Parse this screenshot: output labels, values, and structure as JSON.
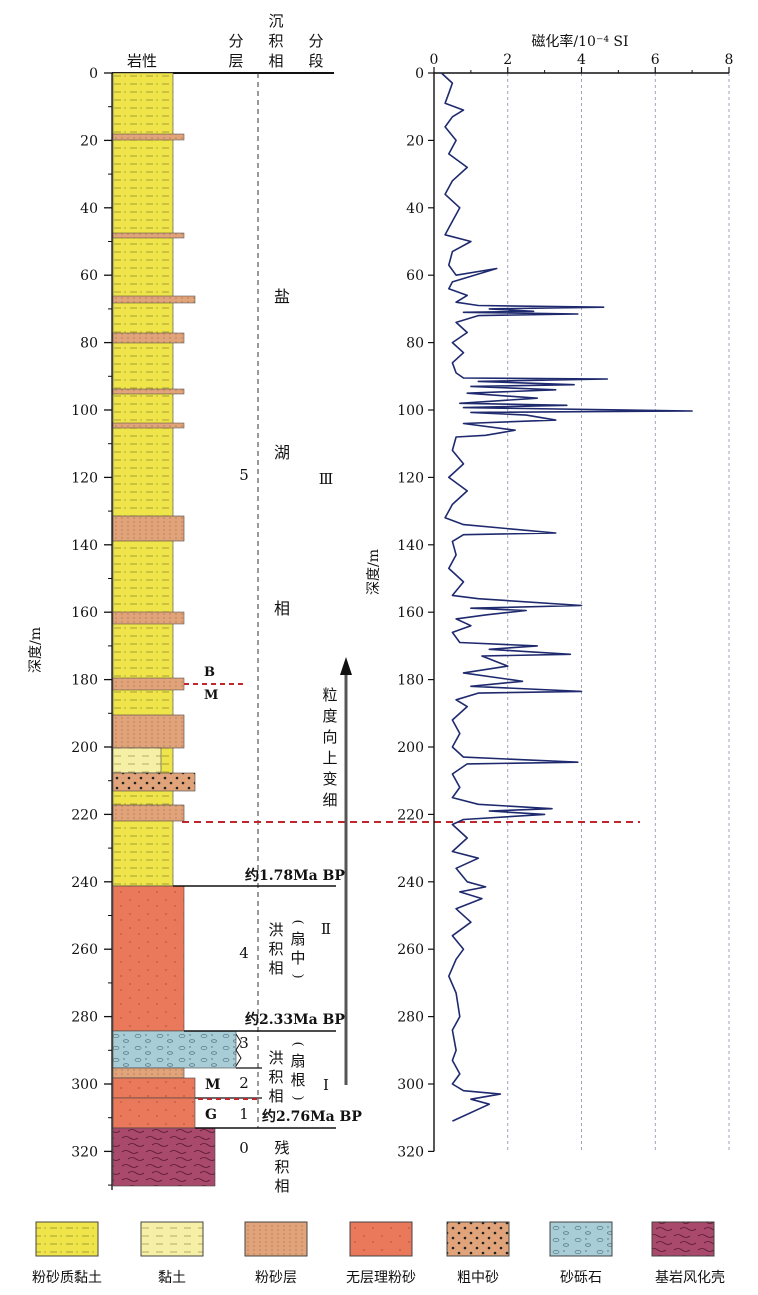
{
  "lith_header": {
    "lithology": "岩性",
    "layer": [
      "分",
      "层"
    ],
    "facies": [
      "沉",
      "积",
      "相"
    ],
    "stage": [
      "分",
      "段"
    ]
  },
  "depth_axis": {
    "label": "深度/m",
    "ticks": [
      "0",
      "20",
      "40",
      "60",
      "80",
      "100",
      "120",
      "140",
      "160",
      "180",
      "200",
      "220",
      "240",
      "260",
      "280",
      "300",
      "320"
    ]
  },
  "layers": [
    {
      "name": "5",
      "facies": [
        "盐",
        "湖",
        "相"
      ],
      "stage": "Ⅲ"
    },
    {
      "name": "4",
      "facies": [
        "洪",
        "积",
        "相"
      ],
      "note": [
        "(",
        "扇",
        "中",
        ")"
      ],
      "stage": "Ⅱ"
    },
    {
      "name": "3",
      "facies": [
        "洪",
        "积",
        "相"
      ],
      "note": [
        "(",
        "扇",
        "根",
        ")"
      ],
      "stage": "Ⅰ"
    },
    {
      "name": "2"
    },
    {
      "name": "1"
    },
    {
      "name": "0",
      "facies": [
        "残",
        "积",
        "相"
      ]
    }
  ],
  "boundaries": [
    {
      "label": "约1.78Ma BP",
      "depth": 240
    },
    {
      "label": "约2.33Ma BP",
      "depth": 283
    },
    {
      "label": "约2.76Ma BP",
      "depth": 310
    }
  ],
  "marks": {
    "B": "B",
    "M_upper": "M",
    "M_lower": "M",
    "G": "G"
  },
  "trend_text": [
    "粒",
    "度",
    "向",
    "上",
    "变",
    "细"
  ],
  "legend": [
    {
      "label": "粉砂质黏土",
      "color": "#efe54a"
    },
    {
      "label": "黏土",
      "color": "#f6f0a6"
    },
    {
      "label": "粉砂层",
      "color": "#e0a37a"
    },
    {
      "label": "无层理粉砂",
      "color": "#e9795a"
    },
    {
      "label": "粗中砂",
      "color": "#e0a37a"
    },
    {
      "label": "砂砾石",
      "color": "#a9cdd6"
    },
    {
      "label": "基岩风化壳",
      "color": "#a9496b"
    }
  ],
  "chart_data": {
    "type": "line",
    "title": "磁化率/10⁻⁴ SI",
    "ylabel": "深度/m",
    "xlim": [
      0,
      8
    ],
    "ylim": [
      0,
      320
    ],
    "y_inverted": true,
    "x_ticks": [
      "0",
      "2",
      "4",
      "6",
      "8"
    ],
    "y_ticks": [
      "0",
      "20",
      "40",
      "60",
      "80",
      "100",
      "120",
      "140",
      "160",
      "180",
      "200",
      "220",
      "240",
      "260",
      "280",
      "300",
      "320"
    ],
    "grid": "vertical dashed at x=2,4,6,8",
    "line_color": "#1f2a6e",
    "series": [
      {
        "points": [
          [
            0.2,
            0
          ],
          [
            0.5,
            3
          ],
          [
            0.4,
            6
          ],
          [
            0.3,
            9
          ],
          [
            0.8,
            11
          ],
          [
            0.5,
            13
          ],
          [
            0.3,
            16
          ],
          [
            0.6,
            20
          ],
          [
            0.4,
            24
          ],
          [
            0.9,
            28
          ],
          [
            0.5,
            32
          ],
          [
            0.3,
            36
          ],
          [
            0.7,
            40
          ],
          [
            0.5,
            44
          ],
          [
            0.3,
            48
          ],
          [
            1.0,
            50
          ],
          [
            0.5,
            53
          ],
          [
            0.4,
            57
          ],
          [
            0.6,
            60
          ],
          [
            1.7,
            58
          ],
          [
            0.5,
            62
          ],
          [
            0.4,
            64
          ],
          [
            0.9,
            66
          ],
          [
            0.6,
            68
          ],
          [
            1.2,
            69
          ],
          [
            4.6,
            69.5
          ],
          [
            1.5,
            70
          ],
          [
            2.7,
            70.7
          ],
          [
            0.8,
            71
          ],
          [
            3.9,
            71.5
          ],
          [
            1.2,
            72
          ],
          [
            0.6,
            74
          ],
          [
            0.9,
            77
          ],
          [
            0.5,
            80
          ],
          [
            0.8,
            83
          ],
          [
            0.5,
            86
          ],
          [
            0.6,
            89
          ],
          [
            0.8,
            90.5
          ],
          [
            4.7,
            90.8
          ],
          [
            1.2,
            91.5
          ],
          [
            3.8,
            92.5
          ],
          [
            1.0,
            93
          ],
          [
            3.3,
            94
          ],
          [
            0.9,
            95
          ],
          [
            2.8,
            96.5
          ],
          [
            0.7,
            98
          ],
          [
            3.6,
            98.6
          ],
          [
            0.8,
            99.3
          ],
          [
            7.0,
            100.3
          ],
          [
            1.0,
            100.7
          ],
          [
            2.5,
            101.5
          ],
          [
            3.3,
            103
          ],
          [
            0.8,
            104
          ],
          [
            2.2,
            106
          ],
          [
            1.4,
            107.5
          ],
          [
            0.6,
            108
          ],
          [
            0.5,
            112
          ],
          [
            0.8,
            116
          ],
          [
            0.4,
            120
          ],
          [
            0.9,
            124
          ],
          [
            0.5,
            128
          ],
          [
            0.3,
            132
          ],
          [
            0.8,
            134
          ],
          [
            3.3,
            136.5
          ],
          [
            0.8,
            137
          ],
          [
            0.5,
            139
          ],
          [
            0.6,
            143
          ],
          [
            0.4,
            147
          ],
          [
            0.8,
            151
          ],
          [
            0.5,
            155
          ],
          [
            1.2,
            156
          ],
          [
            4.0,
            158
          ],
          [
            1.0,
            158.8
          ],
          [
            2.5,
            159.5
          ],
          [
            1.4,
            160.8
          ],
          [
            0.6,
            162
          ],
          [
            1.0,
            164
          ],
          [
            0.5,
            166
          ],
          [
            0.7,
            169
          ],
          [
            2.8,
            170
          ],
          [
            1.5,
            171
          ],
          [
            3.7,
            172.5
          ],
          [
            1.3,
            173
          ],
          [
            2.0,
            176
          ],
          [
            0.8,
            178
          ],
          [
            2.4,
            180.5
          ],
          [
            1.0,
            182
          ],
          [
            4.0,
            183.5
          ],
          [
            1.2,
            184
          ],
          [
            0.6,
            186
          ],
          [
            0.9,
            188
          ],
          [
            0.5,
            192
          ],
          [
            0.7,
            196
          ],
          [
            0.5,
            200
          ],
          [
            0.8,
            203
          ],
          [
            3.9,
            204.5
          ],
          [
            0.9,
            205
          ],
          [
            0.5,
            208
          ],
          [
            0.7,
            212
          ],
          [
            0.5,
            215
          ],
          [
            1.2,
            217
          ],
          [
            3.2,
            218.3
          ],
          [
            1.5,
            219
          ],
          [
            3.0,
            220
          ],
          [
            0.8,
            221.5
          ],
          [
            0.5,
            223
          ],
          [
            0.9,
            227
          ],
          [
            0.5,
            231
          ],
          [
            1.2,
            233
          ],
          [
            0.6,
            236
          ],
          [
            0.9,
            240
          ],
          [
            1.4,
            241.5
          ],
          [
            0.7,
            243
          ],
          [
            1.3,
            245
          ],
          [
            0.6,
            248
          ],
          [
            1.0,
            252
          ],
          [
            0.5,
            256
          ],
          [
            0.8,
            260
          ],
          [
            0.6,
            263
          ],
          [
            0.4,
            268
          ],
          [
            0.6,
            273
          ],
          [
            0.7,
            280
          ],
          [
            0.5,
            284
          ],
          [
            0.6,
            290
          ],
          [
            0.5,
            293
          ],
          [
            0.7,
            297
          ],
          [
            0.5,
            300
          ],
          [
            0.8,
            302
          ],
          [
            1.8,
            303
          ],
          [
            1.0,
            304.5
          ],
          [
            1.5,
            306
          ],
          [
            0.5,
            311
          ]
        ]
      }
    ]
  }
}
